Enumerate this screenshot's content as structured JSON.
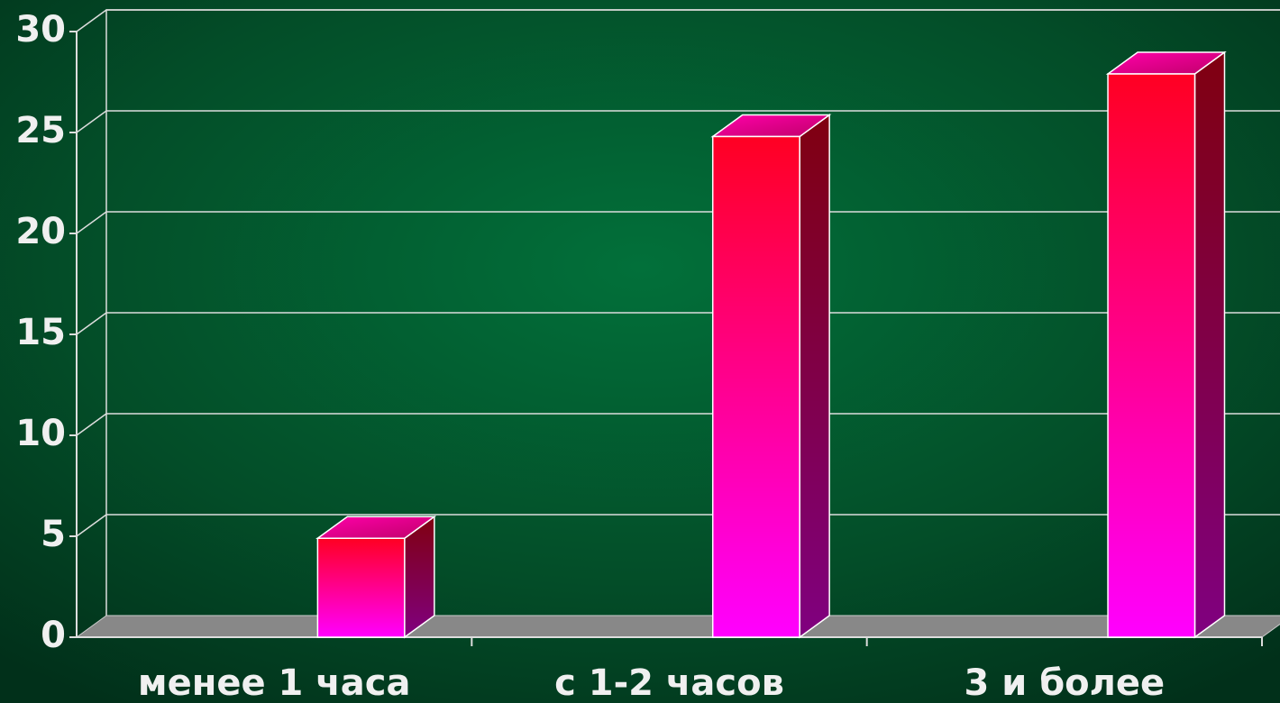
{
  "chart_data": {
    "type": "bar3d",
    "categories": [
      "менее 1 часа",
      "с 1-2 часов",
      "3 и более"
    ],
    "values": [
      4.9,
      24.8,
      27.9
    ],
    "ylim": [
      0,
      30
    ],
    "yticks": [
      0,
      5,
      10,
      15,
      20,
      25,
      30
    ],
    "grid": true
  }
}
